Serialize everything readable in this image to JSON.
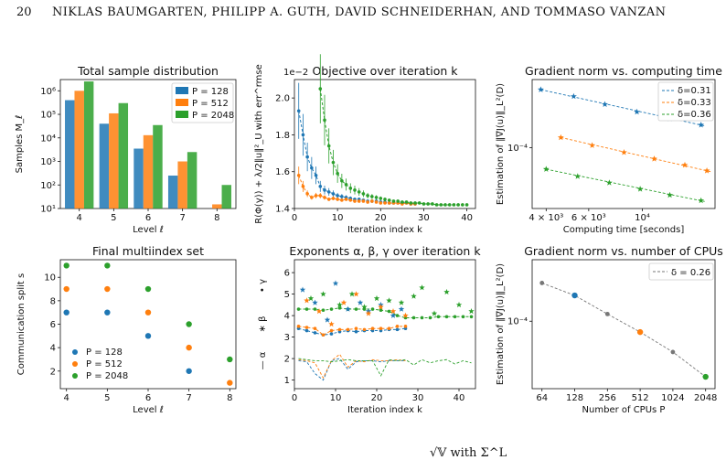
{
  "header": {
    "page_number": "20",
    "authors": "NIKLAS BAUMGARTEN, PHILIPP A. GUTH, DAVID SCHNEIDERHAN, AND TOMMASO VANZAN"
  },
  "colors": {
    "blue": "#1f77b4",
    "orange": "#ff7f0e",
    "green": "#2ca02c",
    "gray": "#777777"
  },
  "chart_data": [
    {
      "type": "bar",
      "title": "Total sample distribution",
      "xlabel": "Level ℓ",
      "ylabel": "Samples M_ℓ",
      "yscale": "log",
      "ylim": [
        10,
        3000000
      ],
      "categories": [
        "4",
        "5",
        "6",
        "7",
        "8"
      ],
      "yticks": [
        "10¹",
        "10²",
        "10³",
        "10⁴",
        "10⁵",
        "10⁶"
      ],
      "legend": "top-right",
      "series": [
        {
          "name": "P = 128",
          "values": [
            400000,
            40000,
            3500,
            250,
            null
          ]
        },
        {
          "name": "P = 512",
          "values": [
            1000000,
            110000,
            13000,
            1000,
            15
          ]
        },
        {
          "name": "P = 2048",
          "values": [
            2500000,
            300000,
            35000,
            2500,
            100
          ]
        }
      ]
    },
    {
      "type": "line",
      "title": "Objective over iteration k",
      "xlabel": "Iteration index k",
      "ylabel": "R(Φ(y)) + λ/2‖u‖²_U with err^rmse",
      "y_multiplier": "1e−2",
      "ylim": [
        1.4,
        2.1
      ],
      "xlim": [
        0,
        42
      ],
      "xticks": [
        "0",
        "10",
        "20",
        "30",
        "40"
      ],
      "yticks": [
        "1.4",
        "1.6",
        "1.8",
        "2.0"
      ],
      "series": [
        {
          "name": "blue",
          "x": [
            1,
            2,
            3,
            4,
            5,
            6,
            7,
            8,
            9,
            10,
            11,
            12,
            13,
            14,
            15,
            16,
            17,
            18,
            19,
            20,
            21,
            22,
            23,
            24,
            25,
            26,
            27,
            28
          ],
          "values": [
            1.93,
            1.8,
            1.68,
            1.62,
            1.58,
            1.52,
            1.5,
            1.49,
            1.48,
            1.47,
            1.465,
            1.46,
            1.455,
            1.45,
            1.45,
            1.445,
            1.44,
            1.44,
            1.44,
            1.435,
            1.435,
            1.43,
            1.43,
            1.43,
            1.43,
            1.43,
            1.425,
            1.425
          ]
        },
        {
          "name": "orange",
          "x": [
            1,
            2,
            3,
            4,
            5,
            6,
            7,
            8,
            9,
            10,
            11,
            12,
            13,
            14,
            15,
            16,
            17,
            18,
            19,
            20,
            21,
            22,
            23,
            24,
            25,
            26,
            27,
            28
          ],
          "values": [
            1.58,
            1.52,
            1.48,
            1.46,
            1.47,
            1.47,
            1.46,
            1.45,
            1.455,
            1.45,
            1.445,
            1.45,
            1.445,
            1.44,
            1.44,
            1.44,
            1.435,
            1.44,
            1.435,
            1.43,
            1.43,
            1.43,
            1.43,
            1.43,
            1.425,
            1.43,
            1.425,
            1.425
          ]
        },
        {
          "name": "green",
          "x": [
            6,
            7,
            8,
            9,
            10,
            11,
            12,
            13,
            14,
            15,
            16,
            17,
            18,
            19,
            20,
            21,
            22,
            23,
            24,
            25,
            26,
            27,
            28,
            29,
            30,
            31,
            32,
            33,
            34,
            35,
            36,
            37,
            38,
            39,
            40
          ],
          "values": [
            2.05,
            1.88,
            1.74,
            1.65,
            1.59,
            1.55,
            1.53,
            1.51,
            1.5,
            1.49,
            1.48,
            1.47,
            1.465,
            1.46,
            1.455,
            1.45,
            1.445,
            1.44,
            1.44,
            1.435,
            1.435,
            1.43,
            1.43,
            1.43,
            1.425,
            1.425,
            1.425,
            1.42,
            1.42,
            1.42,
            1.42,
            1.42,
            1.42,
            1.42,
            1.42
          ]
        }
      ]
    },
    {
      "type": "scatter",
      "title": "Gradient norm vs. computing time",
      "xlabel": "Computing time [seconds]",
      "ylabel": "Estimation of ‖∇J(u)‖_L²(D)",
      "xscale": "log",
      "yscale": "log",
      "xticks": [
        "4 × 10³",
        "6 × 10³",
        "10⁴"
      ],
      "yticks": [
        "10⁻⁴"
      ],
      "legend": "top-right",
      "series": [
        {
          "name": "δ=0.31",
          "x": [
            3800,
            5200,
            7000,
            9500,
            13000,
            17500
          ],
          "values": [
            0.00036,
            0.00031,
            0.00026,
            0.00022,
            0.00019,
            0.000165
          ]
        },
        {
          "name": "δ=0.33",
          "x": [
            4600,
            6200,
            8400,
            11200,
            15000,
            18500
          ],
          "values": [
            0.000125,
            0.000105,
            9e-05,
            7.8e-05,
            6.8e-05,
            6e-05
          ]
        },
        {
          "name": "δ=0.36",
          "x": [
            4000,
            5400,
            7300,
            9800,
            13000,
            17500
          ],
          "values": [
            6.2e-05,
            5.3e-05,
            4.6e-05,
            4e-05,
            3.5e-05,
            3.1e-05
          ]
        }
      ]
    },
    {
      "type": "scatter",
      "title": "Final multiindex set",
      "xlabel": "Level ℓ",
      "ylabel": "Communication split s",
      "xticks": [
        "4",
        "5",
        "6",
        "7",
        "8"
      ],
      "yticks": [
        "2",
        "4",
        "6",
        "8",
        "10"
      ],
      "legend": "bottom-left",
      "series": [
        {
          "name": "P = 128",
          "x": [
            4,
            5,
            6,
            7
          ],
          "values": [
            7,
            7,
            5,
            2
          ]
        },
        {
          "name": "P = 512",
          "x": [
            4,
            5,
            6,
            7,
            8
          ],
          "values": [
            9,
            9,
            7,
            4,
            1
          ]
        },
        {
          "name": "P = 2048",
          "x": [
            4,
            5,
            6,
            7,
            8
          ],
          "values": [
            11,
            11,
            9,
            6,
            3
          ]
        }
      ]
    },
    {
      "type": "line",
      "title": "Exponents α, β, γ over iteration k",
      "xlabel": "Iteration index k",
      "ylabel_parts": [
        "— α",
        "∗ β",
        "• γ"
      ],
      "xticks": [
        "0",
        "10",
        "20",
        "30",
        "40"
      ],
      "yticks": [
        "1",
        "2",
        "3",
        "4",
        "5",
        "6"
      ],
      "xlim": [
        0,
        44
      ],
      "ylim": [
        0.6,
        6.6
      ],
      "series": [
        {
          "name": "γ blue",
          "x": [
            1,
            3,
            5,
            7,
            9,
            11,
            13,
            15,
            17,
            19,
            21,
            23,
            25,
            27
          ],
          "values": [
            3.4,
            3.3,
            3.2,
            3.1,
            3.15,
            3.25,
            3.3,
            3.25,
            3.3,
            3.3,
            3.3,
            3.35,
            3.35,
            3.4
          ]
        },
        {
          "name": "γ orange",
          "x": [
            1,
            3,
            5,
            7,
            9,
            11,
            13,
            15,
            17,
            19,
            21,
            23,
            25,
            27
          ],
          "values": [
            3.5,
            3.45,
            3.4,
            3.1,
            3.3,
            3.35,
            3.35,
            3.4,
            3.35,
            3.4,
            3.4,
            3.4,
            3.5,
            3.5
          ]
        },
        {
          "name": "γ green",
          "x": [
            1,
            3,
            5,
            7,
            9,
            11,
            13,
            15,
            17,
            19,
            21,
            23,
            25,
            27,
            29,
            31,
            33,
            35,
            37,
            39,
            41,
            43
          ],
          "values": [
            4.3,
            4.3,
            4.3,
            4.25,
            4.3,
            4.35,
            4.3,
            4.3,
            4.3,
            4.3,
            4.25,
            4.2,
            4.0,
            3.9,
            3.9,
            3.9,
            3.9,
            3.95,
            3.95,
            3.95,
            3.95,
            3.95
          ]
        },
        {
          "name": "β blue",
          "x": [
            2,
            5,
            8,
            10,
            13,
            16,
            18,
            21,
            24,
            26
          ],
          "values": [
            5.2,
            4.6,
            3.8,
            5.5,
            4.3,
            4.6,
            4.2,
            4.5,
            4.0,
            4.3
          ]
        },
        {
          "name": "β orange",
          "x": [
            3,
            6,
            9,
            12,
            15,
            18,
            21,
            24,
            27
          ],
          "values": [
            4.7,
            4.2,
            3.6,
            4.6,
            5.0,
            4.1,
            4.4,
            4.2,
            4.0
          ]
        },
        {
          "name": "β green",
          "x": [
            4,
            7,
            11,
            14,
            17,
            20,
            23,
            26,
            29,
            31,
            34,
            37,
            40,
            43
          ],
          "values": [
            4.8,
            5.0,
            4.5,
            5.0,
            4.4,
            4.8,
            4.7,
            4.6,
            4.9,
            5.3,
            4.1,
            5.1,
            4.5,
            4.2
          ]
        },
        {
          "name": "α blue",
          "x": [
            1,
            3,
            5,
            7,
            9,
            11,
            13,
            15,
            17,
            19,
            21,
            23,
            25,
            27
          ],
          "values": [
            1.9,
            1.85,
            1.3,
            1.0,
            1.9,
            2.0,
            1.5,
            1.85,
            1.9,
            1.9,
            1.85,
            1.9,
            1.9,
            1.9
          ]
        },
        {
          "name": "α orange",
          "x": [
            1,
            3,
            5,
            7,
            9,
            11,
            13,
            15,
            17,
            19,
            21,
            23,
            25,
            27
          ],
          "values": [
            1.95,
            1.9,
            1.8,
            1.1,
            1.9,
            2.2,
            1.6,
            1.9,
            1.85,
            1.95,
            1.9,
            1.9,
            1.95,
            1.9
          ]
        },
        {
          "name": "α green",
          "x": [
            1,
            3,
            5,
            7,
            9,
            11,
            13,
            15,
            17,
            19,
            21,
            23,
            25,
            27,
            29,
            31,
            33,
            35,
            37,
            39,
            41,
            43
          ],
          "values": [
            2.0,
            1.95,
            1.9,
            1.9,
            1.85,
            1.9,
            1.95,
            1.9,
            1.9,
            1.9,
            1.2,
            1.95,
            1.9,
            1.95,
            1.7,
            1.95,
            1.8,
            1.9,
            1.95,
            1.75,
            1.9,
            1.8
          ]
        }
      ]
    },
    {
      "type": "scatter",
      "title": "Gradient norm vs. number of CPUs",
      "xlabel": "Number of CPUs P",
      "ylabel": "Estimation of ‖∇J(u)‖_L²(D)",
      "xscale": "log",
      "yscale": "log",
      "xticks": [
        "64",
        "128",
        "256",
        "512",
        "1024",
        "2048"
      ],
      "yticks": [
        "10⁻⁴"
      ],
      "legend": "top-right",
      "series": [
        {
          "name": "δ = 0.26",
          "x": [
            64,
            128,
            256,
            512,
            1024,
            2048
          ],
          "values": [
            0.00021,
            0.000165,
            0.000115,
            8.1e-05,
            5.5e-05,
            3.4e-05
          ]
        }
      ]
    }
  ],
  "bottom_fragment": "√𝕍   with Σ^L"
}
